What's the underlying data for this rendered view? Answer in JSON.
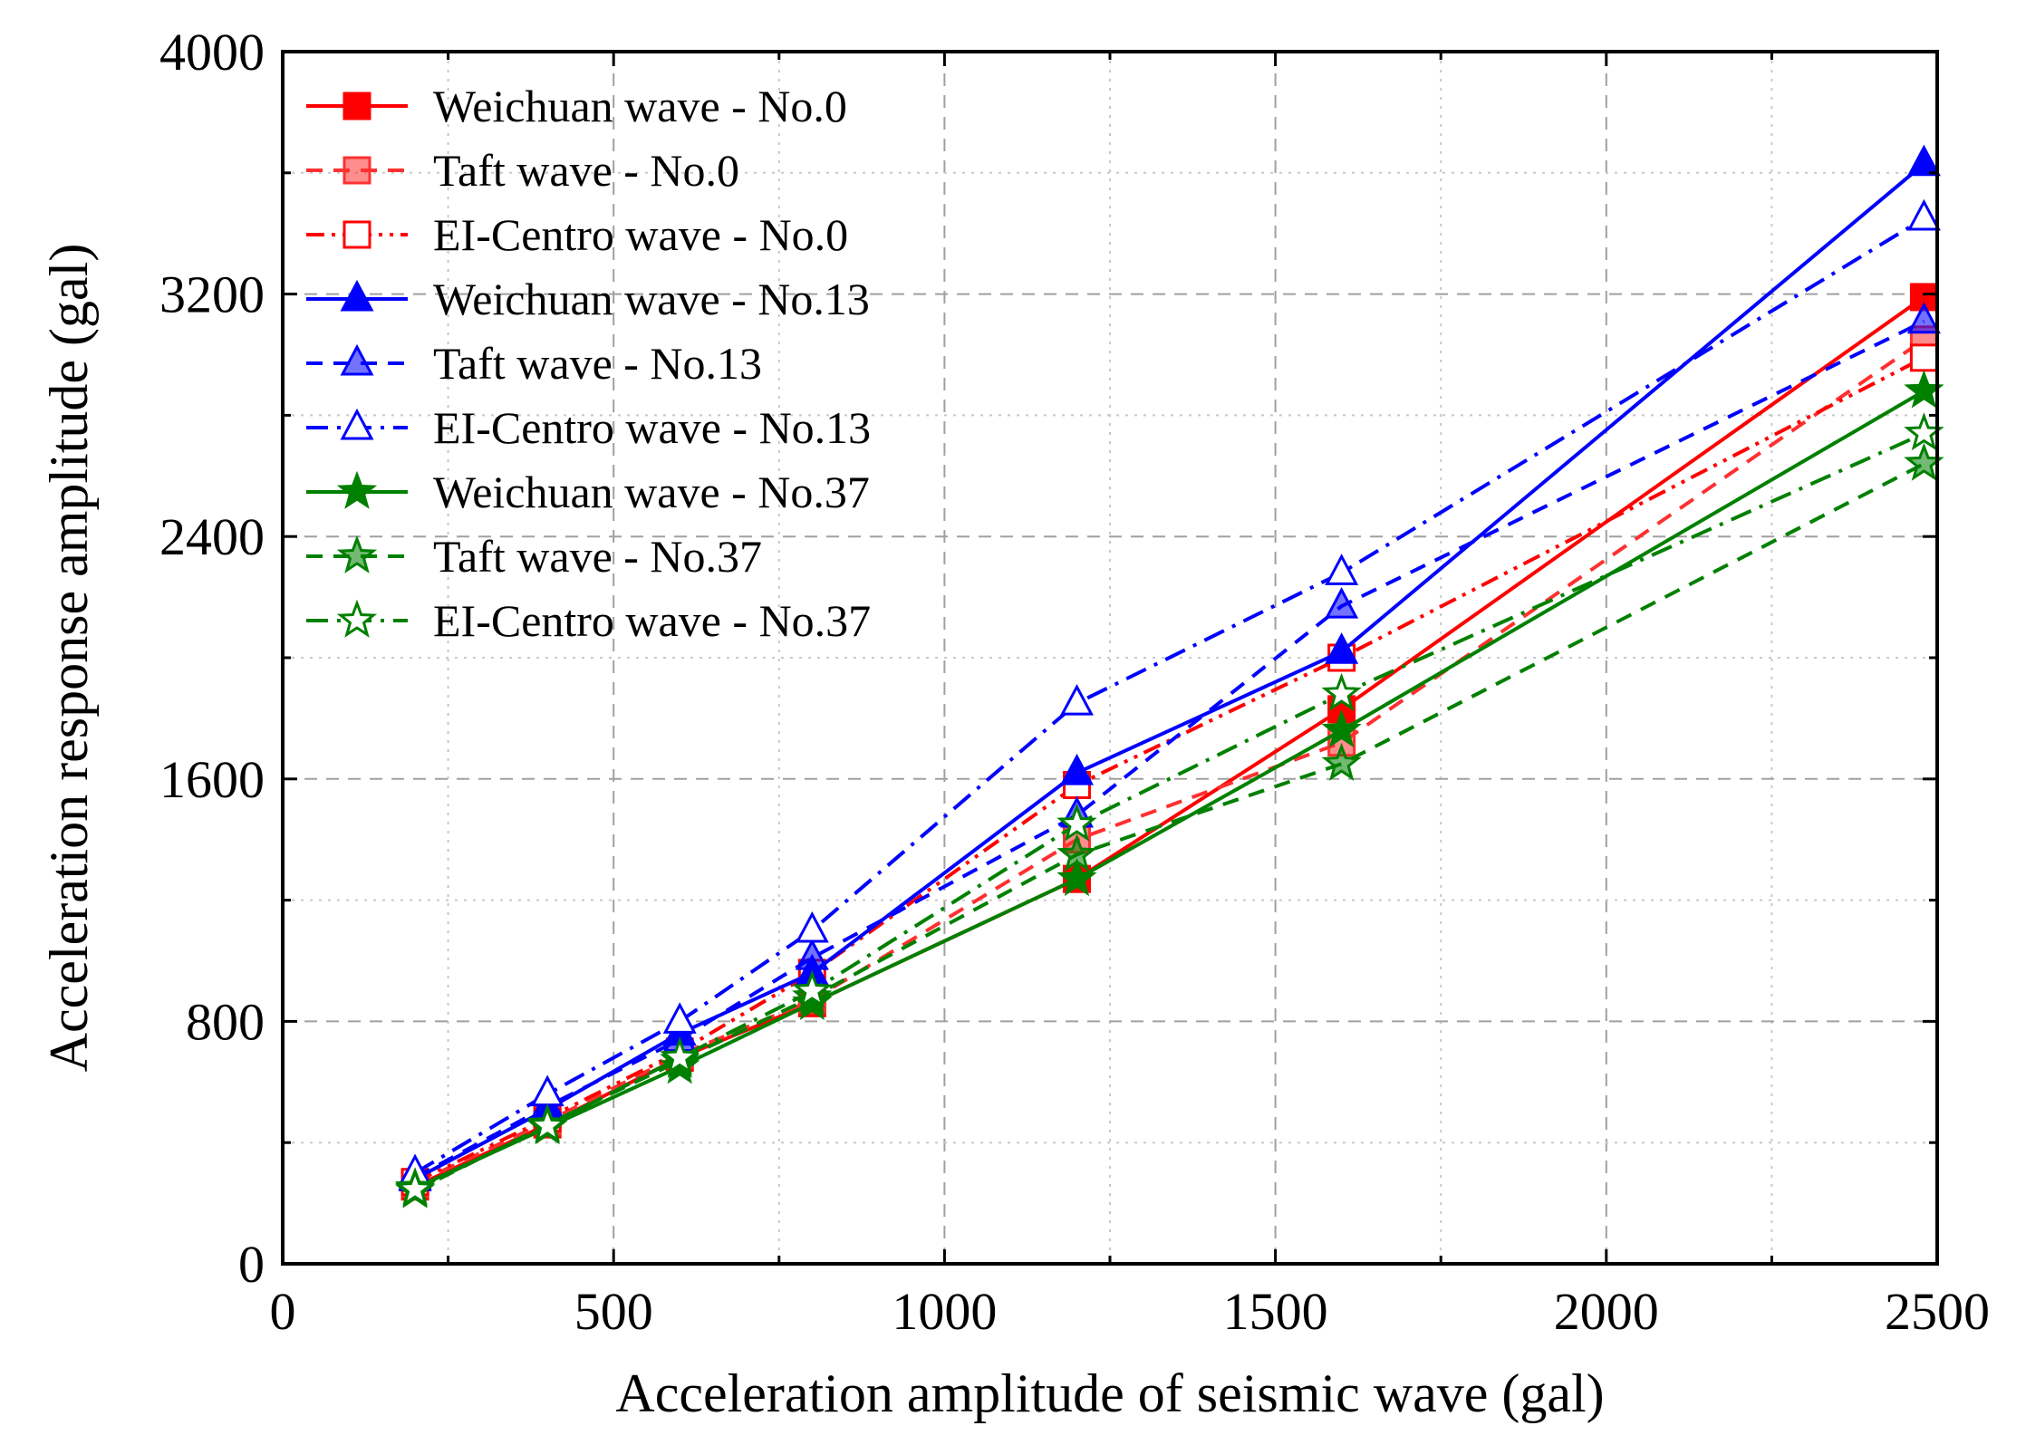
{
  "chart_data": {
    "type": "line",
    "title": "",
    "xlabel": "Acceleration amplitude of seismic wave (gal)",
    "ylabel": "Acceleration response amplitude (gal)",
    "xlim": [
      0,
      2500
    ],
    "ylim": [
      0,
      4000
    ],
    "x_ticks": [
      "0",
      "500",
      "1000",
      "1500",
      "2000",
      "2500"
    ],
    "y_ticks": [
      "0",
      "800",
      "1600",
      "2400",
      "3200",
      "4000"
    ],
    "grid": true,
    "legend_position": "top-left",
    "x": [
      200,
      400,
      600,
      800,
      1200,
      1600,
      2480
    ],
    "series": [
      {
        "name": "Weichuan wave - No.0",
        "color": "#ff0000",
        "dash": "solid",
        "marker": "square-filled",
        "values": [
          255,
          460,
          680,
          860,
          1270,
          1830,
          3190
        ]
      },
      {
        "name": "Taft wave - No.0",
        "color": "#ff3030",
        "dash": "dashed",
        "marker": "square-half",
        "values": [
          265,
          470,
          690,
          870,
          1400,
          1720,
          3050
        ]
      },
      {
        "name": "EI-Centro wave - No.0",
        "color": "#ff0000",
        "dash": "dashdotdot",
        "marker": "square-open",
        "values": [
          270,
          480,
          700,
          960,
          1580,
          2000,
          2990
        ]
      },
      {
        "name": "Weichuan wave - No.13",
        "color": "#0000ff",
        "dash": "solid",
        "marker": "triangle-filled",
        "values": [
          280,
          510,
          760,
          960,
          1620,
          2020,
          3630
        ]
      },
      {
        "name": "Taft wave - No.13",
        "color": "#0000ff",
        "dash": "dashed",
        "marker": "triangle-half",
        "values": [
          285,
          520,
          740,
          1010,
          1480,
          2170,
          3110
        ]
      },
      {
        "name": "EI-Centro wave - No.13",
        "color": "#0000ff",
        "dash": "dashdot",
        "marker": "triangle-open",
        "values": [
          300,
          560,
          800,
          1100,
          1850,
          2280,
          3450
        ]
      },
      {
        "name": "Weichuan wave - No.37",
        "color": "#008000",
        "dash": "solid",
        "marker": "star-filled",
        "values": [
          250,
          450,
          650,
          860,
          1270,
          1760,
          2880
        ]
      },
      {
        "name": "Taft wave - No.37",
        "color": "#008000",
        "dash": "dashed",
        "marker": "star-half",
        "values": [
          240,
          460,
          670,
          880,
          1350,
          1650,
          2640
        ]
      },
      {
        "name": "EI-Centro wave - No.37",
        "color": "#008000",
        "dash": "dashdot",
        "marker": "star-open",
        "values": [
          245,
          455,
          680,
          900,
          1450,
          1880,
          2740
        ]
      }
    ]
  }
}
